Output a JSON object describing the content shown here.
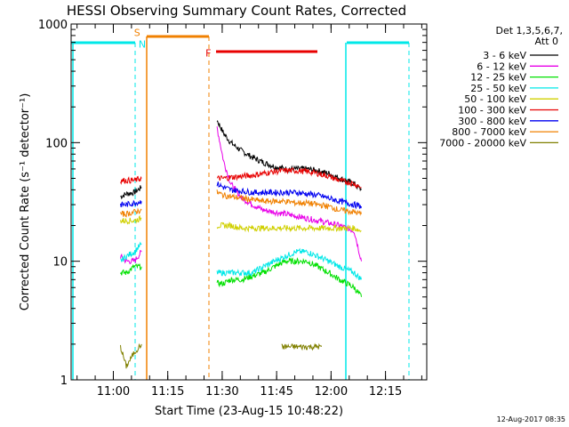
{
  "chart_data": {
    "type": "line",
    "title": "HESSI Observing Summary Count Rates, Corrected",
    "xlabel": "Start Time (23-Aug-15 10:48:22)",
    "ylabel": "Corrected Count Rate (s⁻¹ detector⁻¹)",
    "y_scale": "log",
    "ylim": [
      1,
      1000
    ],
    "xlim_minutes_after_start": [
      0,
      98
    ],
    "yticks": [
      {
        "value": 1,
        "label": "1"
      },
      {
        "value": 10,
        "label": "10"
      },
      {
        "value": 100,
        "label": "100"
      },
      {
        "value": 1000,
        "label": "1000"
      }
    ],
    "xticks": [
      {
        "label": "11:00",
        "t": 11.63
      },
      {
        "label": "11:15",
        "t": 26.63
      },
      {
        "label": "11:30",
        "t": 41.63
      },
      {
        "label": "11:45",
        "t": 56.63
      },
      {
        "label": "12:00",
        "t": 71.63
      },
      {
        "label": "12:15",
        "t": 86.63
      }
    ],
    "legend": {
      "header_line1": "Det 1,3,5,6,7,",
      "header_line2": "Att 0",
      "placement": "right"
    },
    "series": [
      {
        "name": "3 - 6 keV",
        "color": "#000000",
        "segments": [
          {
            "x": [
              13.6,
              15.2,
              17.4,
              19.4
            ],
            "y": [
              35,
              37,
              38,
              42
            ]
          },
          {
            "x": [
              40.2,
              42,
              44,
              47,
              50,
              53,
              56,
              59,
              62,
              65,
              68,
              71,
              74,
              78,
              80
            ],
            "y": [
              155,
              120,
              100,
              85,
              75,
              68,
              63,
              60,
              60,
              60,
              58,
              55,
              50,
              45,
              40
            ]
          }
        ]
      },
      {
        "name": "6 - 12 keV",
        "color": "#e800e8",
        "segments": [
          {
            "x": [
              13.6,
              15.2,
              17.4,
              19.4
            ],
            "y": [
              11,
              10,
              10,
              12
            ]
          },
          {
            "x": [
              40.2,
              42,
              44,
              47,
              50,
              53,
              56,
              59,
              62,
              65,
              68,
              71,
              74,
              78,
              80
            ],
            "y": [
              135,
              70,
              45,
              34,
              30,
              27,
              26,
              25,
              24,
              23,
              22,
              21,
              20,
              18,
              10
            ]
          }
        ]
      },
      {
        "name": "12 - 25 keV",
        "color": "#00e000",
        "segments": [
          {
            "x": [
              13.6,
              15.2,
              17.4,
              19.4
            ],
            "y": [
              8,
              8,
              9,
              9
            ]
          },
          {
            "x": [
              40.2,
              42,
              44,
              47,
              50,
              53,
              56,
              59,
              62,
              65,
              68,
              71,
              74,
              78,
              80
            ],
            "y": [
              6.5,
              6.5,
              7,
              7,
              7.5,
              8,
              9,
              10,
              10,
              10,
              9,
              8,
              7,
              6,
              5
            ]
          }
        ]
      },
      {
        "name": "25 - 50 keV",
        "color": "#00e8e8",
        "segments": [
          {
            "x": [
              13.6,
              15.2,
              17.4,
              19.4
            ],
            "y": [
              10,
              11,
              12,
              14
            ]
          },
          {
            "x": [
              40.2,
              42,
              44,
              47,
              50,
              53,
              56,
              59,
              62,
              65,
              68,
              71,
              74,
              78,
              80
            ],
            "y": [
              8,
              8,
              8,
              8,
              8,
              9,
              10,
              11,
              12,
              12,
              11,
              10,
              9,
              8,
              7
            ]
          }
        ]
      },
      {
        "name": "50 - 100 keV",
        "color": "#d0d000",
        "segments": [
          {
            "x": [
              13.6,
              15.2,
              17.4,
              19.4
            ],
            "y": [
              22,
              22,
              22,
              23
            ]
          },
          {
            "x": [
              40.2,
              42,
              44,
              47,
              50,
              53,
              56,
              59,
              62,
              65,
              68,
              71,
              74,
              78,
              80
            ],
            "y": [
              20,
              20,
              20,
              19,
              19,
              19,
              19,
              19,
              19,
              19,
              19,
              19,
              19,
              19,
              18
            ]
          }
        ]
      },
      {
        "name": "100 - 300 keV",
        "color": "#e80000",
        "segments": [
          {
            "x": [
              13.6,
              15.2,
              17.4,
              19.4
            ],
            "y": [
              48,
              48,
              48,
              50
            ]
          },
          {
            "x": [
              40.2,
              42,
              44,
              47,
              50,
              53,
              56,
              59,
              62,
              65,
              68,
              71,
              74,
              78,
              80
            ],
            "y": [
              50,
              50,
              51,
              52,
              53,
              55,
              57,
              58,
              58,
              57,
              55,
              52,
              48,
              45,
              42
            ]
          }
        ]
      },
      {
        "name": "300 - 800 keV",
        "color": "#0000f0",
        "segments": [
          {
            "x": [
              13.6,
              15.2,
              17.4,
              19.4
            ],
            "y": [
              30,
              30,
              31,
              32
            ]
          },
          {
            "x": [
              40.2,
              42,
              44,
              47,
              50,
              53,
              56,
              59,
              62,
              65,
              68,
              71,
              74,
              78,
              80
            ],
            "y": [
              45,
              42,
              40,
              39,
              38,
              38,
              38,
              38,
              38,
              37,
              36,
              34,
              32,
              30,
              29
            ]
          }
        ]
      },
      {
        "name": "800 - 7000 keV",
        "color": "#f08000",
        "segments": [
          {
            "x": [
              13.6,
              15.2,
              17.4,
              19.4
            ],
            "y": [
              25,
              25,
              26,
              27
            ]
          },
          {
            "x": [
              40.2,
              42,
              44,
              47,
              50,
              53,
              56,
              59,
              62,
              65,
              68,
              71,
              74,
              78,
              80
            ],
            "y": [
              38,
              36,
              35,
              34,
              33,
              32,
              32,
              32,
              31,
              31,
              30,
              29,
              27,
              26,
              25
            ]
          }
        ]
      },
      {
        "name": "7000 - 20000 keV",
        "color": "#808000",
        "segments": [
          {
            "x": [
              13.6,
              15.2,
              17.4,
              19.4
            ],
            "y": [
              1.9,
              1.3,
              1.7,
              2
            ]
          },
          {
            "x": [
              58,
              60,
              62,
              64,
              66,
              68,
              69
            ],
            "y": [
              1.9,
              1.9,
              1.9,
              1.9,
              1.9,
              1.9,
              1.9
            ]
          }
        ]
      }
    ],
    "annotations": [
      {
        "text": "S",
        "color": "#f08000",
        "t": 18.2,
        "y": 850
      },
      {
        "text": "N",
        "color": "#00e8e8",
        "t": 19.6,
        "y": 680
      },
      {
        "text": "F",
        "color": "#e80000",
        "t": 37.8,
        "y": 570
      }
    ],
    "footer_timestamp": "12-Aug-2017 08:35"
  }
}
